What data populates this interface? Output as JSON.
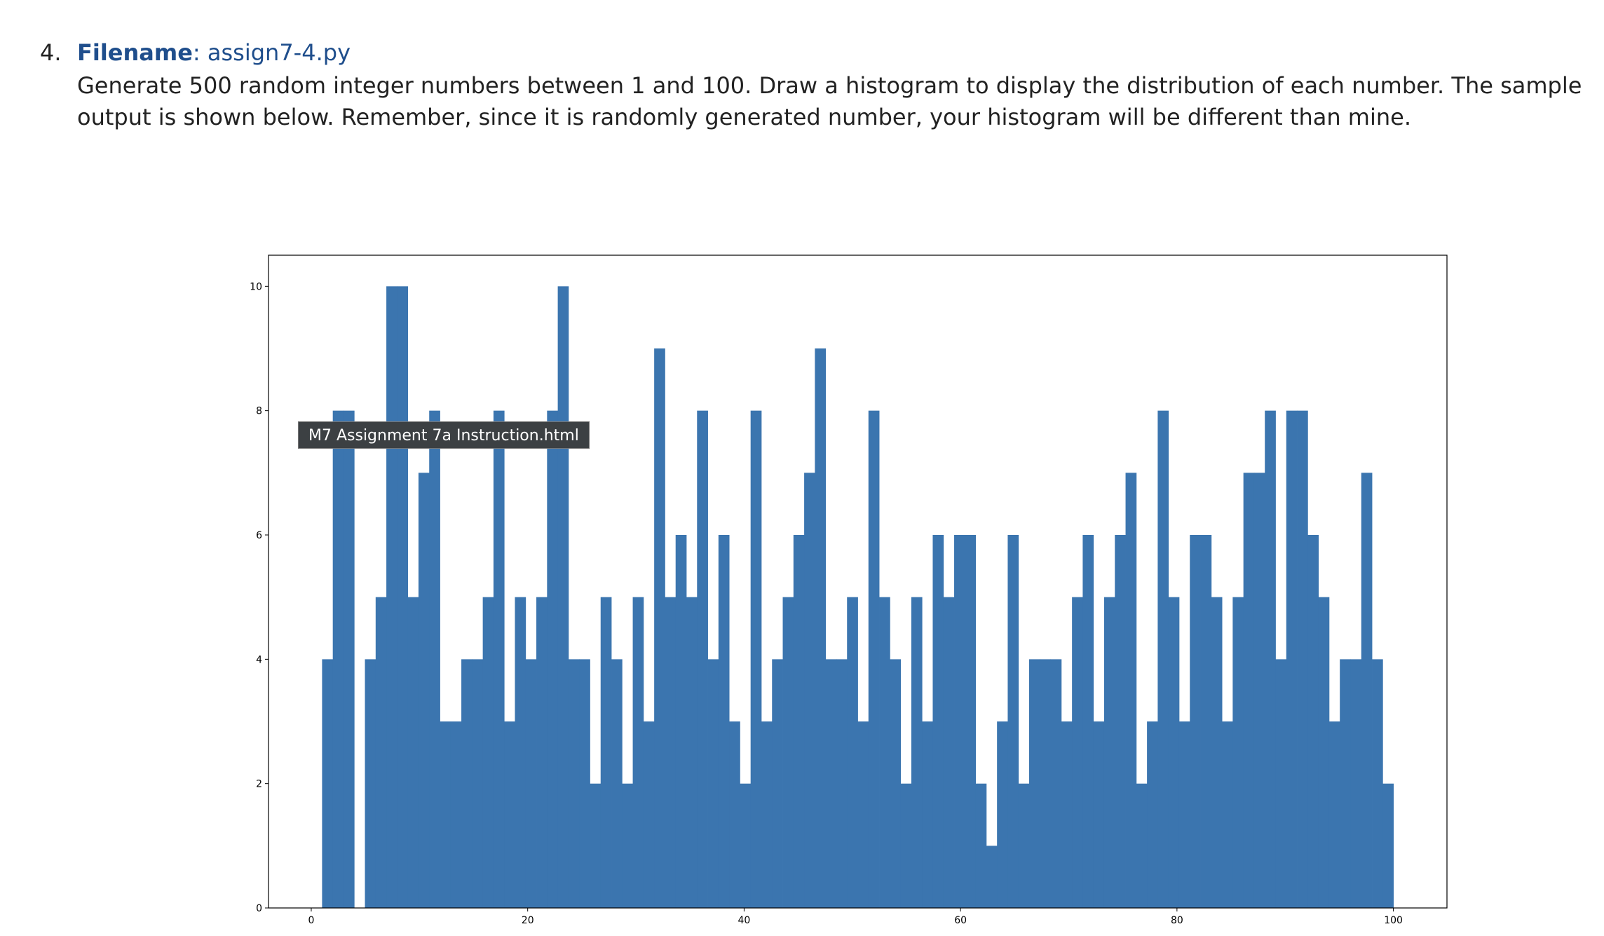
{
  "item": {
    "number": "4.",
    "label": "Filename",
    "separator": ":",
    "filename": "assign7-4.py",
    "description": "Generate 500 random integer numbers between 1 and 100. Draw a histogram to display the distribution of each number. The sample output is shown below. Remember, since it is randomly generated number, your histogram will be different than mine."
  },
  "tooltip": "M7 Assignment 7a Instruction.html",
  "chart_data": {
    "type": "histogram",
    "color": "#3b75af",
    "bins": [
      1,
      1.99,
      2.98,
      3.97,
      4.96,
      5.95,
      6.94,
      7.93,
      8.92,
      9.91,
      10.9,
      11.89,
      12.88,
      13.87,
      14.86,
      15.85,
      16.84,
      17.83,
      18.82,
      19.81,
      20.8,
      21.79,
      22.78,
      23.77,
      24.76,
      25.75,
      26.74,
      27.73,
      28.72,
      29.71,
      30.7,
      31.69,
      32.68,
      33.67,
      34.66,
      35.65,
      36.64,
      37.63,
      38.62,
      39.61,
      40.6,
      41.59,
      42.58,
      43.57,
      44.56,
      45.55,
      46.54,
      47.53,
      48.52,
      49.51,
      50.5,
      51.49,
      52.48,
      53.47,
      54.46,
      55.45,
      56.44,
      57.43,
      58.42,
      59.41,
      60.4,
      61.39,
      62.38,
      63.37,
      64.36,
      65.35,
      66.34,
      67.33,
      68.32,
      69.31,
      70.3,
      71.29,
      72.28,
      73.27,
      74.26,
      75.25,
      76.24,
      77.23,
      78.22,
      79.21,
      80.2,
      81.19,
      82.18,
      83.17,
      84.16,
      85.15,
      86.14,
      87.13,
      88.12,
      89.11,
      90.1,
      91.09,
      92.08,
      93.07,
      94.06,
      95.05,
      96.04,
      97.03,
      98.02,
      99.01,
      100
    ],
    "values": [
      4,
      8,
      8,
      0,
      4,
      5,
      10,
      10,
      5,
      7,
      8,
      3,
      3,
      4,
      4,
      5,
      8,
      3,
      5,
      4,
      5,
      8,
      10,
      4,
      4,
      2,
      5,
      4,
      2,
      5,
      3,
      9,
      5,
      6,
      5,
      8,
      4,
      6,
      3,
      2,
      8,
      3,
      4,
      5,
      6,
      7,
      9,
      4,
      4,
      5,
      3,
      8,
      5,
      4,
      2,
      5,
      3,
      6,
      5,
      6,
      6,
      2,
      1,
      3,
      6,
      2,
      4,
      4,
      4,
      3,
      5,
      6,
      3,
      5,
      6,
      7,
      2,
      3,
      8,
      5,
      3,
      6,
      6,
      5,
      3,
      5,
      7,
      7,
      8,
      4,
      8,
      8,
      6,
      5,
      3,
      4,
      4,
      7,
      4,
      2
    ],
    "xlim": [
      -3.95,
      104.95
    ],
    "ylim": [
      0,
      10.5
    ],
    "xticks": [
      0,
      20,
      40,
      60,
      80,
      100
    ],
    "yticks": [
      0,
      2,
      4,
      6,
      8,
      10
    ]
  }
}
